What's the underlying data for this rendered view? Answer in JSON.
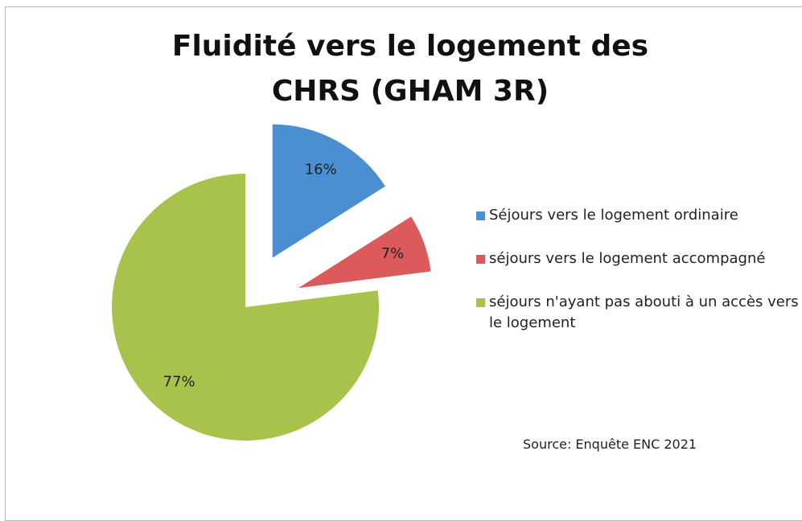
{
  "chart_data": {
    "type": "pie",
    "title": "Fluidité vers le logement des CHRS (GHAM 3R)",
    "categories": [
      "Séjours vers le logement ordinaire",
      "séjours vers le logement accompagné",
      "séjours n'ayant pas abouti à un accès vers le logement"
    ],
    "values": [
      16,
      7,
      77
    ],
    "value_labels": [
      "16%",
      "7%",
      "77%"
    ],
    "colors": [
      "#4a8fd1",
      "#dc5a5c",
      "#a7c34b"
    ],
    "exploded": [
      true,
      true,
      false
    ],
    "legend": "right",
    "annotation": "Source: Enquête ENC 2021"
  }
}
